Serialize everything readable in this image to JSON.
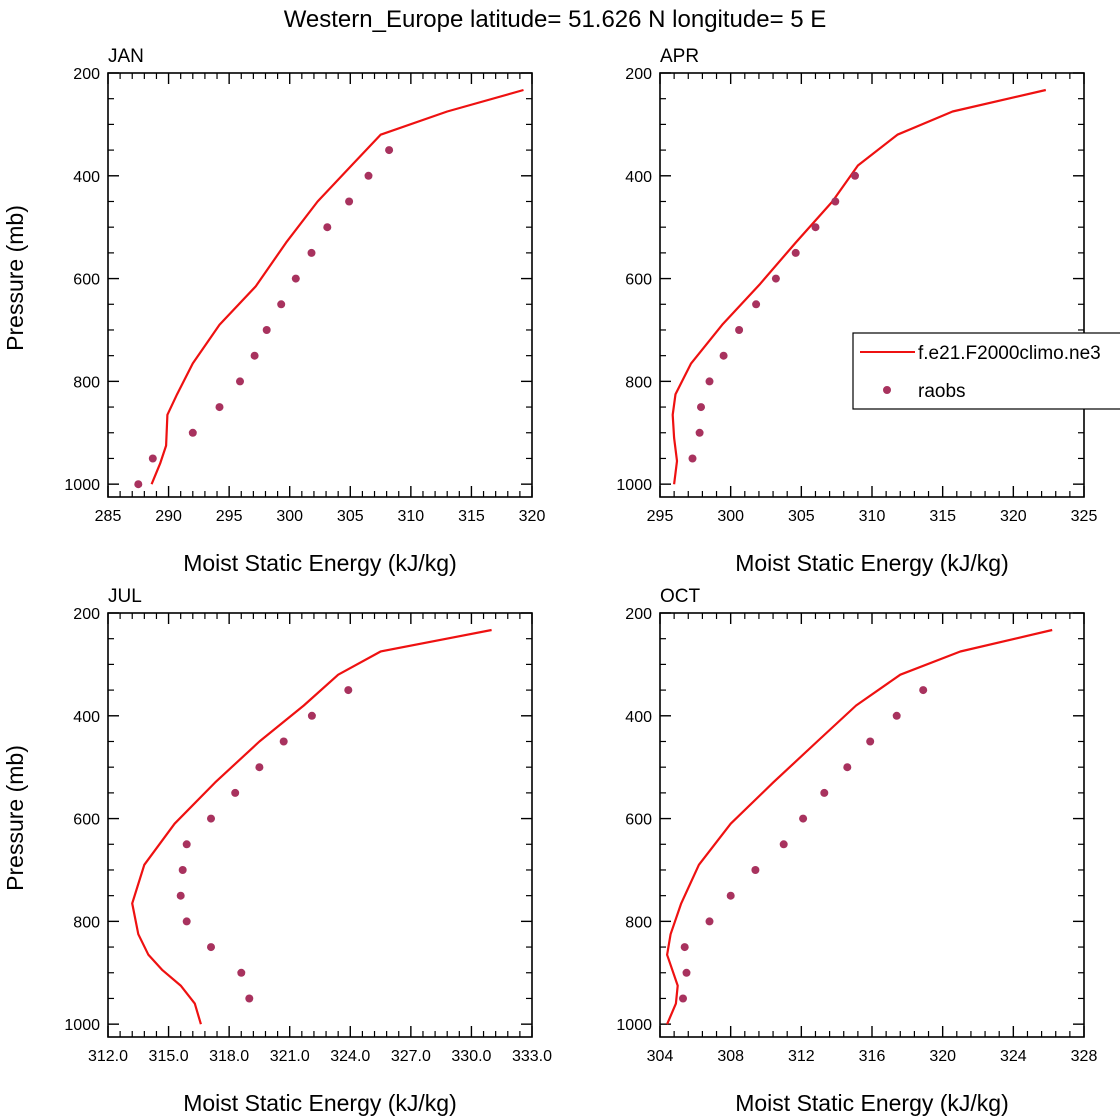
{
  "page_title": "Western_Europe  latitude= 51.626 N longitude= 5 E",
  "colors": {
    "model": "#ee1111",
    "obs": "#a8325e",
    "axis": "#000000"
  },
  "legend": {
    "model_label": "f.e21.F2000climo.ne3",
    "obs_label": "raobs",
    "panel": 1
  },
  "chart_data": [
    {
      "type": "line",
      "title": "JAN",
      "xlabel": "Moist Static Energy (kJ/kg)",
      "ylabel": "Pressure (mb)",
      "xlim": [
        285,
        320
      ],
      "ylim": [
        1025,
        200
      ],
      "xticks": [
        285,
        290,
        295,
        300,
        305,
        310,
        315,
        320
      ],
      "xtick_labels": [
        "285",
        "290",
        "295",
        "300",
        "305",
        "310",
        "315",
        "320"
      ],
      "yticks": [
        200,
        400,
        600,
        800,
        1000
      ],
      "ytick_labels": [
        "200",
        "400",
        "600",
        "800",
        "1000"
      ],
      "series": [
        {
          "name": "f.e21.F2000climo.ne3",
          "kind": "line",
          "x": [
            288.6,
            289.3,
            289.8,
            289.9,
            290.7,
            292.0,
            294.2,
            297.2,
            299.7,
            302.3,
            305.1,
            307.5,
            313.0,
            319.3
          ],
          "y": [
            1000,
            960,
            925,
            865,
            825,
            765,
            690,
            615,
            530,
            450,
            380,
            320,
            275,
            233
          ]
        },
        {
          "name": "raobs",
          "kind": "scatter",
          "x": [
            287.5,
            288.7,
            292.0,
            294.2,
            295.9,
            297.1,
            298.1,
            299.3,
            300.5,
            301.8,
            303.1,
            304.9,
            306.5,
            308.2
          ],
          "y": [
            1000,
            950,
            900,
            850,
            800,
            750,
            700,
            650,
            600,
            550,
            500,
            450,
            400,
            350
          ]
        }
      ]
    },
    {
      "type": "line",
      "title": "APR",
      "xlabel": "Moist Static Energy (kJ/kg)",
      "ylabel": "",
      "xlim": [
        295,
        325
      ],
      "ylim": [
        1025,
        200
      ],
      "xticks": [
        295,
        300,
        305,
        310,
        315,
        320,
        325
      ],
      "xtick_labels": [
        "295",
        "300",
        "305",
        "310",
        "315",
        "320",
        "325"
      ],
      "yticks": [
        200,
        400,
        600,
        800,
        1000
      ],
      "ytick_labels": [
        "200",
        "400",
        "600",
        "800",
        "1000"
      ],
      "series": [
        {
          "name": "f.e21.F2000climo.ne3",
          "kind": "line",
          "x": [
            296.0,
            296.2,
            296.0,
            295.9,
            296.1,
            297.2,
            299.4,
            302.1,
            304.6,
            307.2,
            309.0,
            311.8,
            315.7,
            322.3
          ],
          "y": [
            1000,
            955,
            910,
            865,
            825,
            765,
            690,
            610,
            530,
            450,
            380,
            320,
            275,
            233
          ]
        },
        {
          "name": "raobs",
          "kind": "scatter",
          "x": [
            297.3,
            297.8,
            297.9,
            298.5,
            299.5,
            300.6,
            301.8,
            303.2,
            304.6,
            306.0,
            307.4,
            308.8
          ],
          "y": [
            950,
            900,
            850,
            800,
            750,
            700,
            650,
            600,
            550,
            500,
            450,
            400
          ]
        }
      ]
    },
    {
      "type": "line",
      "title": "JUL",
      "xlabel": "Moist Static Energy (kJ/kg)",
      "ylabel": "Pressure (mb)",
      "xlim": [
        312.0,
        333.0
      ],
      "ylim": [
        1025,
        200
      ],
      "xticks": [
        312,
        315,
        318,
        321,
        324,
        327,
        330,
        333
      ],
      "xtick_labels": [
        "312.0",
        "315.0",
        "318.0",
        "321.0",
        "324.0",
        "327.0",
        "330.0",
        "333.0"
      ],
      "yticks": [
        200,
        400,
        600,
        800,
        1000
      ],
      "ytick_labels": [
        "200",
        "400",
        "600",
        "800",
        "1000"
      ],
      "series": [
        {
          "name": "f.e21.F2000climo.ne3",
          "kind": "line",
          "x": [
            316.6,
            316.3,
            315.6,
            314.7,
            314.0,
            313.5,
            313.2,
            313.8,
            315.3,
            317.3,
            319.5,
            321.7,
            323.4,
            325.5,
            331.0
          ],
          "y": [
            1000,
            960,
            925,
            895,
            865,
            825,
            765,
            690,
            610,
            530,
            450,
            380,
            320,
            275,
            233
          ]
        },
        {
          "name": "raobs",
          "kind": "scatter",
          "x": [
            319.0,
            318.6,
            317.1,
            315.9,
            315.6,
            315.7,
            315.9,
            317.1,
            318.3,
            319.5,
            320.7,
            322.1,
            323.9
          ],
          "y": [
            950,
            900,
            850,
            800,
            750,
            700,
            650,
            600,
            550,
            500,
            450,
            400,
            350
          ]
        }
      ]
    },
    {
      "type": "line",
      "title": "OCT",
      "xlabel": "Moist Static Energy (kJ/kg)",
      "ylabel": "",
      "xlim": [
        304,
        328
      ],
      "ylim": [
        1025,
        200
      ],
      "xticks": [
        304,
        308,
        312,
        316,
        320,
        324,
        328
      ],
      "xtick_labels": [
        "304",
        "308",
        "312",
        "316",
        "320",
        "324",
        "328"
      ],
      "yticks": [
        200,
        400,
        600,
        800,
        1000
      ],
      "ytick_labels": [
        "200",
        "400",
        "600",
        "800",
        "1000"
      ],
      "series": [
        {
          "name": "f.e21.F2000climo.ne3",
          "kind": "line",
          "x": [
            304.4,
            304.9,
            305.0,
            304.7,
            304.4,
            304.6,
            305.2,
            306.2,
            308.0,
            310.4,
            312.9,
            315.1,
            317.6,
            321.0,
            326.2
          ],
          "y": [
            1000,
            960,
            925,
            895,
            865,
            825,
            765,
            690,
            610,
            530,
            450,
            380,
            320,
            275,
            233
          ]
        },
        {
          "name": "raobs",
          "kind": "scatter",
          "x": [
            305.3,
            305.5,
            305.4,
            306.8,
            308.0,
            309.4,
            311.0,
            312.1,
            313.3,
            314.6,
            315.9,
            317.4,
            318.9
          ],
          "y": [
            950,
            900,
            850,
            800,
            750,
            700,
            650,
            600,
            550,
            500,
            450,
            400,
            350
          ]
        }
      ]
    }
  ]
}
